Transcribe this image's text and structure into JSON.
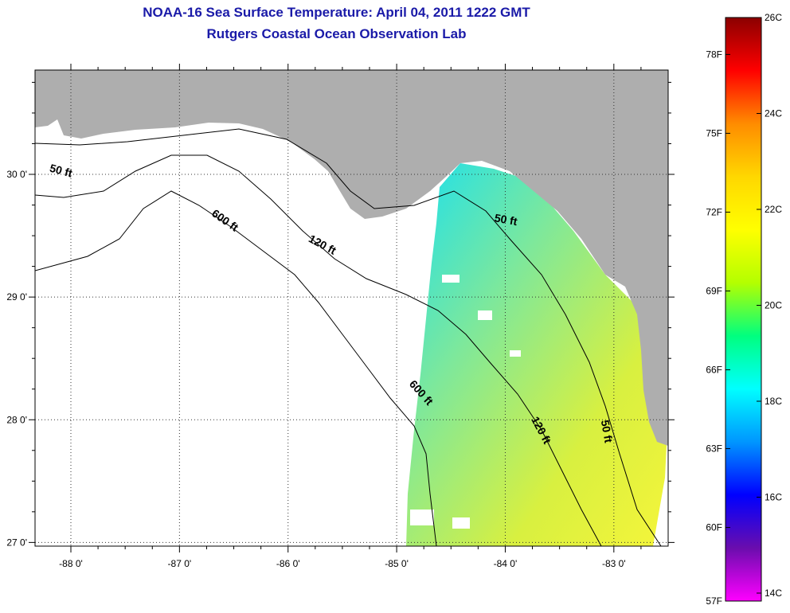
{
  "title": "NOAA-16 Sea Surface Temperature:  April 04, 2011 1222 GMT",
  "subtitle": "Rutgers Coastal Ocean Observation Lab",
  "map": {
    "lon_range": [
      -88.33,
      -82.5
    ],
    "lat_range": [
      26.97,
      30.85
    ],
    "lon_ticks": [
      "-88 0'",
      "-87 0'",
      "-86 0'",
      "-85 0'",
      "-84 0'",
      "-83 0'"
    ],
    "lat_ticks": [
      "30 0'",
      "29 0'",
      "28 0'",
      "27 0'"
    ],
    "contour_labels": [
      {
        "text": "50 ft",
        "lon": -88.1,
        "lat": 30.0
      },
      {
        "text": "600 ft",
        "lon": -86.6,
        "lat": 29.6
      },
      {
        "text": "120 ft",
        "lon": -85.7,
        "lat": 29.4
      },
      {
        "text": "50 ft",
        "lon": -84.0,
        "lat": 29.6
      },
      {
        "text": "600 ft",
        "lon": -84.8,
        "lat": 28.2
      },
      {
        "text": "120 ft",
        "lon": -83.7,
        "lat": 27.9
      },
      {
        "text": "50 ft",
        "lon": -83.1,
        "lat": 27.9
      }
    ],
    "colors": {
      "land": "#aeaeae",
      "water": "#ffffff",
      "contour": "#000000"
    }
  },
  "colorbar": {
    "celsius_labels": [
      "26C",
      "24C",
      "22C",
      "20C",
      "18C",
      "16C",
      "14C"
    ],
    "fahrenheit_labels": [
      "78F",
      "75F",
      "72F",
      "69F",
      "66F",
      "63F",
      "60F",
      "57F"
    ],
    "celsius_range": [
      14,
      26
    ],
    "fahrenheit_values": [
      78,
      75,
      72,
      69,
      66,
      63,
      60,
      57
    ],
    "gradient_stops": [
      "#8b0000",
      "#ff0000",
      "#ff8c00",
      "#ffd700",
      "#ffff00",
      "#b4ff00",
      "#00ff7f",
      "#00ffff",
      "#0096ff",
      "#0000ff",
      "#6a0dad",
      "#ff00ff"
    ]
  }
}
